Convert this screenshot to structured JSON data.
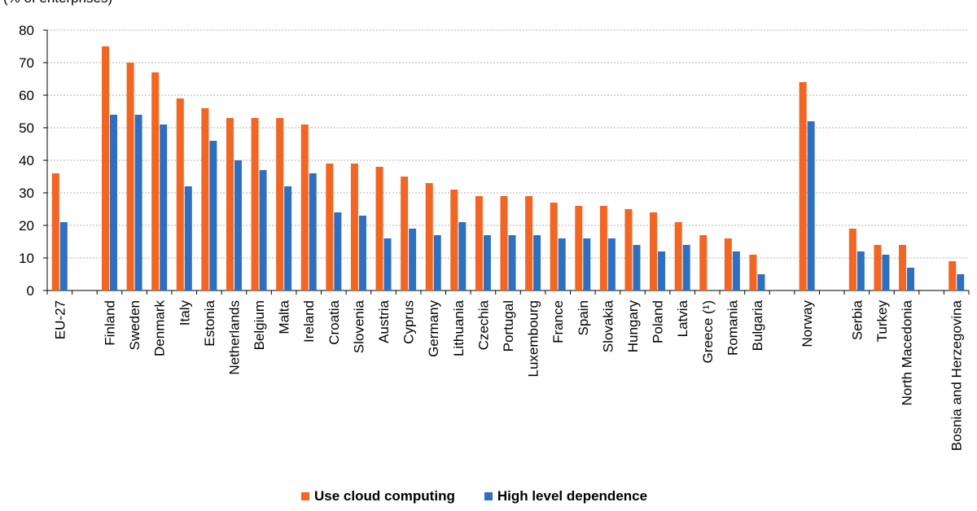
{
  "subtitle": "(% of enterprises)",
  "colors": {
    "use_cloud": "#f26522",
    "high_dependence": "#2f6fbf",
    "grid": "#b0b0b0",
    "axis": "#000000"
  },
  "chart_data": {
    "type": "bar",
    "title": "",
    "xlabel": "",
    "ylabel": "",
    "ylim": [
      0,
      80
    ],
    "yticks": [
      "0",
      "10",
      "20",
      "30",
      "40",
      "50",
      "60",
      "70",
      "80"
    ],
    "grid": true,
    "legend_position": "bottom",
    "categories": [
      "EU-27",
      "",
      "Finland",
      "Sweden",
      "Denmark",
      "Italy",
      "Estonia",
      "Netherlands",
      "Belgium",
      "Malta",
      "Ireland",
      "Croatia",
      "Slovenia",
      "Austria",
      "Cyprus",
      "Germany",
      "Lithuania",
      "Czechia",
      "Portugal",
      "Luxembourg",
      "France",
      "Spain",
      "Slovakia",
      "Hungary",
      "Poland",
      "Latvia",
      "Greece (¹)",
      "Romania",
      "Bulgaria",
      "",
      "Norway",
      "",
      "Serbia",
      "Turkey",
      "North Macedonia",
      "",
      "Bosnia and Herzegovina"
    ],
    "series": [
      {
        "name": "Use cloud computing",
        "values": [
          36,
          null,
          75,
          70,
          67,
          59,
          56,
          53,
          53,
          53,
          51,
          39,
          39,
          38,
          35,
          33,
          31,
          29,
          29,
          29,
          27,
          26,
          26,
          25,
          24,
          21,
          17,
          16,
          11,
          null,
          64,
          null,
          19,
          14,
          14,
          null,
          9
        ]
      },
      {
        "name": "High level dependence",
        "values": [
          21,
          null,
          54,
          54,
          51,
          32,
          46,
          40,
          37,
          32,
          36,
          24,
          23,
          16,
          19,
          17,
          21,
          17,
          17,
          17,
          16,
          16,
          16,
          14,
          12,
          14,
          null,
          12,
          5,
          null,
          52,
          null,
          12,
          11,
          7,
          null,
          5
        ]
      }
    ]
  },
  "legend": {
    "items": [
      {
        "label": "Use cloud computing"
      },
      {
        "label": "High level dependence"
      }
    ]
  }
}
